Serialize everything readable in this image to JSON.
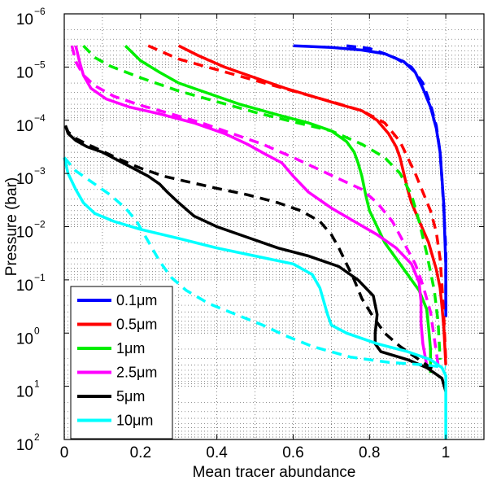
{
  "chart_data": {
    "type": "line",
    "title": "",
    "xlabel": "Mean tracer abundance",
    "ylabel": "Pressure (bar)",
    "xlim": [
      0,
      1.1
    ],
    "ylim_exponent": [
      -6,
      2
    ],
    "y_scale": "log",
    "y_inverted": true,
    "grid": true,
    "legend_position": "bottom-left",
    "x_ticks": [
      {
        "value": 0,
        "label": "0"
      },
      {
        "value": 0.2,
        "label": "0.2"
      },
      {
        "value": 0.4,
        "label": "0.4"
      },
      {
        "value": 0.6,
        "label": "0.6"
      },
      {
        "value": 0.8,
        "label": "0.8"
      },
      {
        "value": 1.0,
        "label": "1"
      }
    ],
    "y_ticks": [
      {
        "exp": -6,
        "base": "10",
        "sup": "−6"
      },
      {
        "exp": -5,
        "base": "10",
        "sup": "−5"
      },
      {
        "exp": -4,
        "base": "10",
        "sup": "−4"
      },
      {
        "exp": -3,
        "base": "10",
        "sup": "−3"
      },
      {
        "exp": -2,
        "base": "10",
        "sup": "−2"
      },
      {
        "exp": -1,
        "base": "10",
        "sup": "−1"
      },
      {
        "exp": 0,
        "base": "10",
        "sup": "0"
      },
      {
        "exp": 1,
        "base": "10",
        "sup": "1"
      },
      {
        "exp": 2,
        "base": "10",
        "sup": "2"
      }
    ],
    "series": [
      {
        "name": "0.1μm",
        "color": "#0000ff",
        "style": "solid",
        "points": [
          [
            0.6,
            -5.4
          ],
          [
            0.7,
            -5.37
          ],
          [
            0.78,
            -5.32
          ],
          [
            0.84,
            -5.25
          ],
          [
            0.89,
            -5.1
          ],
          [
            0.92,
            -4.9
          ],
          [
            0.94,
            -4.6
          ],
          [
            0.96,
            -4.25
          ],
          [
            0.975,
            -3.85
          ],
          [
            0.985,
            -3.4
          ],
          [
            0.99,
            -2.9
          ],
          [
            0.995,
            -2.4
          ],
          [
            0.997,
            -1.9
          ],
          [
            1.0,
            -1.3
          ],
          [
            1.0,
            -0.8
          ],
          [
            1.0,
            -0.3
          ]
        ]
      },
      {
        "name": "0.1μm dashed",
        "color": "#0000ff",
        "style": "dashed",
        "points": [
          [
            0.74,
            -5.4
          ],
          [
            0.8,
            -5.35
          ],
          [
            0.86,
            -5.2
          ],
          [
            0.91,
            -5.0
          ],
          [
            0.94,
            -4.7
          ],
          [
            0.96,
            -4.3
          ],
          [
            0.975,
            -3.9
          ],
          [
            0.985,
            -3.4
          ],
          [
            0.99,
            -2.9
          ],
          [
            0.995,
            -2.3
          ],
          [
            1.0,
            -1.6
          ],
          [
            1.0,
            -0.9
          ],
          [
            1.0,
            -0.3
          ]
        ]
      },
      {
        "name": "0.5μm",
        "color": "#ff0000",
        "style": "solid",
        "points": [
          [
            0.3,
            -5.4
          ],
          [
            0.35,
            -5.22
          ],
          [
            0.42,
            -5.0
          ],
          [
            0.5,
            -4.8
          ],
          [
            0.58,
            -4.6
          ],
          [
            0.65,
            -4.45
          ],
          [
            0.72,
            -4.3
          ],
          [
            0.78,
            -4.18
          ],
          [
            0.82,
            -4.0
          ],
          [
            0.85,
            -3.75
          ],
          [
            0.87,
            -3.5
          ],
          [
            0.88,
            -3.3
          ],
          [
            0.89,
            -3.0
          ],
          [
            0.9,
            -2.7
          ],
          [
            0.91,
            -2.45
          ],
          [
            0.925,
            -2.2
          ],
          [
            0.94,
            -1.95
          ],
          [
            0.955,
            -1.7
          ],
          [
            0.965,
            -1.45
          ],
          [
            0.975,
            -1.2
          ],
          [
            0.985,
            -0.85
          ],
          [
            0.99,
            -0.5
          ],
          [
            0.995,
            -0.1
          ],
          [
            1.0,
            0.6
          ]
        ]
      },
      {
        "name": "0.5μm dashed",
        "color": "#ff0000",
        "style": "dashed",
        "points": [
          [
            0.22,
            -5.4
          ],
          [
            0.3,
            -5.15
          ],
          [
            0.4,
            -4.95
          ],
          [
            0.5,
            -4.75
          ],
          [
            0.6,
            -4.55
          ],
          [
            0.7,
            -4.35
          ],
          [
            0.78,
            -4.18
          ],
          [
            0.84,
            -3.95
          ],
          [
            0.88,
            -3.6
          ],
          [
            0.9,
            -3.3
          ],
          [
            0.92,
            -3.0
          ],
          [
            0.94,
            -2.65
          ],
          [
            0.96,
            -2.3
          ],
          [
            0.975,
            -1.9
          ],
          [
            0.985,
            -1.4
          ],
          [
            0.99,
            -0.9
          ],
          [
            0.995,
            -0.3
          ],
          [
            1.0,
            0.5
          ]
        ]
      },
      {
        "name": "1μm",
        "color": "#00ee00",
        "style": "solid",
        "points": [
          [
            0.16,
            -5.4
          ],
          [
            0.2,
            -5.12
          ],
          [
            0.25,
            -4.9
          ],
          [
            0.3,
            -4.7
          ],
          [
            0.38,
            -4.5
          ],
          [
            0.46,
            -4.3
          ],
          [
            0.56,
            -4.1
          ],
          [
            0.64,
            -3.95
          ],
          [
            0.7,
            -3.8
          ],
          [
            0.74,
            -3.6
          ],
          [
            0.76,
            -3.4
          ],
          [
            0.77,
            -3.2
          ],
          [
            0.78,
            -2.95
          ],
          [
            0.79,
            -2.6
          ],
          [
            0.8,
            -2.3
          ],
          [
            0.82,
            -2.0
          ],
          [
            0.84,
            -1.7
          ],
          [
            0.87,
            -1.4
          ],
          [
            0.9,
            -1.1
          ],
          [
            0.93,
            -0.8
          ],
          [
            0.95,
            -0.45
          ],
          [
            0.955,
            -0.1
          ],
          [
            0.96,
            0.3
          ],
          [
            0.96,
            0.75
          ]
        ]
      },
      {
        "name": "1μm dashed",
        "color": "#00ee00",
        "style": "dashed",
        "points": [
          [
            0.05,
            -5.4
          ],
          [
            0.08,
            -5.18
          ],
          [
            0.12,
            -5.02
          ],
          [
            0.2,
            -4.8
          ],
          [
            0.3,
            -4.55
          ],
          [
            0.4,
            -4.35
          ],
          [
            0.5,
            -4.15
          ],
          [
            0.6,
            -3.97
          ],
          [
            0.7,
            -3.8
          ],
          [
            0.78,
            -3.55
          ],
          [
            0.84,
            -3.3
          ],
          [
            0.88,
            -3.0
          ],
          [
            0.91,
            -2.6
          ],
          [
            0.93,
            -2.1
          ],
          [
            0.95,
            -1.5
          ],
          [
            0.97,
            -0.8
          ],
          [
            0.98,
            -0.2
          ],
          [
            0.985,
            0.5
          ]
        ]
      },
      {
        "name": "2.5μm",
        "color": "#ff00ff",
        "style": "solid",
        "points": [
          [
            0.03,
            -5.4
          ],
          [
            0.04,
            -5.1
          ],
          [
            0.05,
            -4.85
          ],
          [
            0.07,
            -4.6
          ],
          [
            0.11,
            -4.4
          ],
          [
            0.17,
            -4.25
          ],
          [
            0.25,
            -4.12
          ],
          [
            0.34,
            -3.95
          ],
          [
            0.42,
            -3.75
          ],
          [
            0.48,
            -3.55
          ],
          [
            0.53,
            -3.35
          ],
          [
            0.57,
            -3.2
          ],
          [
            0.6,
            -2.95
          ],
          [
            0.64,
            -2.65
          ],
          [
            0.7,
            -2.35
          ],
          [
            0.76,
            -2.1
          ],
          [
            0.82,
            -1.85
          ],
          [
            0.87,
            -1.6
          ],
          [
            0.91,
            -1.3
          ],
          [
            0.93,
            -0.95
          ],
          [
            0.935,
            -0.6
          ],
          [
            0.935,
            -0.2
          ],
          [
            0.94,
            0.2
          ],
          [
            0.95,
            0.6
          ]
        ]
      },
      {
        "name": "2.5μm dashed",
        "color": "#ff00ff",
        "style": "dashed",
        "points": [
          [
            0.02,
            -5.4
          ],
          [
            0.03,
            -5.1
          ],
          [
            0.05,
            -4.85
          ],
          [
            0.08,
            -4.65
          ],
          [
            0.13,
            -4.45
          ],
          [
            0.2,
            -4.28
          ],
          [
            0.28,
            -4.12
          ],
          [
            0.36,
            -3.95
          ],
          [
            0.44,
            -3.75
          ],
          [
            0.52,
            -3.55
          ],
          [
            0.6,
            -3.3
          ],
          [
            0.66,
            -3.1
          ],
          [
            0.72,
            -2.9
          ],
          [
            0.78,
            -2.7
          ],
          [
            0.82,
            -2.45
          ],
          [
            0.86,
            -2.1
          ],
          [
            0.89,
            -1.7
          ],
          [
            0.92,
            -1.3
          ],
          [
            0.94,
            -0.9
          ],
          [
            0.96,
            -0.4
          ],
          [
            0.97,
            0.1
          ],
          [
            0.98,
            0.6
          ]
        ]
      },
      {
        "name": "5μm",
        "color": "#000000",
        "style": "solid",
        "points": [
          [
            0.003,
            -3.9
          ],
          [
            0.01,
            -3.75
          ],
          [
            0.03,
            -3.62
          ],
          [
            0.06,
            -3.5
          ],
          [
            0.1,
            -3.4
          ],
          [
            0.14,
            -3.25
          ],
          [
            0.18,
            -3.1
          ],
          [
            0.22,
            -2.95
          ],
          [
            0.25,
            -2.8
          ],
          [
            0.27,
            -2.65
          ],
          [
            0.3,
            -2.45
          ],
          [
            0.34,
            -2.2
          ],
          [
            0.4,
            -2.0
          ],
          [
            0.48,
            -1.8
          ],
          [
            0.56,
            -1.6
          ],
          [
            0.64,
            -1.45
          ],
          [
            0.72,
            -1.25
          ],
          [
            0.77,
            -1.0
          ],
          [
            0.81,
            -0.7
          ],
          [
            0.82,
            -0.35
          ],
          [
            0.815,
            0.0
          ],
          [
            0.815,
            0.2
          ],
          [
            0.83,
            0.35
          ],
          [
            0.9,
            0.5
          ],
          [
            0.95,
            0.65
          ],
          [
            0.99,
            0.85
          ],
          [
            1.0,
            1.1
          ]
        ]
      },
      {
        "name": "5μm dashed",
        "color": "#000000",
        "style": "dashed",
        "points": [
          [
            0.003,
            -3.9
          ],
          [
            0.01,
            -3.78
          ],
          [
            0.03,
            -3.66
          ],
          [
            0.06,
            -3.55
          ],
          [
            0.1,
            -3.42
          ],
          [
            0.15,
            -3.25
          ],
          [
            0.2,
            -3.1
          ],
          [
            0.26,
            -2.95
          ],
          [
            0.32,
            -2.85
          ],
          [
            0.4,
            -2.72
          ],
          [
            0.48,
            -2.6
          ],
          [
            0.56,
            -2.45
          ],
          [
            0.62,
            -2.3
          ],
          [
            0.67,
            -2.1
          ],
          [
            0.7,
            -1.85
          ],
          [
            0.72,
            -1.6
          ],
          [
            0.74,
            -1.3
          ],
          [
            0.76,
            -1.0
          ],
          [
            0.78,
            -0.65
          ],
          [
            0.81,
            -0.3
          ],
          [
            0.84,
            0.0
          ],
          [
            0.88,
            0.25
          ],
          [
            0.92,
            0.45
          ],
          [
            0.97,
            0.7
          ]
        ]
      },
      {
        "name": "10μm",
        "color": "#00ffff",
        "style": "solid",
        "points": [
          [
            0.0,
            -3.3
          ],
          [
            0.01,
            -3.0
          ],
          [
            0.03,
            -2.7
          ],
          [
            0.05,
            -2.45
          ],
          [
            0.08,
            -2.25
          ],
          [
            0.13,
            -2.1
          ],
          [
            0.2,
            -1.95
          ],
          [
            0.3,
            -1.78
          ],
          [
            0.4,
            -1.6
          ],
          [
            0.5,
            -1.45
          ],
          [
            0.6,
            -1.3
          ],
          [
            0.65,
            -1.1
          ],
          [
            0.67,
            -0.85
          ],
          [
            0.68,
            -0.6
          ],
          [
            0.69,
            -0.35
          ],
          [
            0.7,
            -0.15
          ],
          [
            0.74,
            0.0
          ],
          [
            0.82,
            0.2
          ],
          [
            0.9,
            0.35
          ],
          [
            0.96,
            0.5
          ],
          [
            0.99,
            0.65
          ],
          [
            1.0,
            0.8
          ],
          [
            1.0,
            1.5
          ],
          [
            1.0,
            2.0
          ]
        ]
      },
      {
        "name": "10μm dashed",
        "color": "#00ffff",
        "style": "dashed",
        "points": [
          [
            0.0,
            -3.3
          ],
          [
            0.03,
            -3.05
          ],
          [
            0.07,
            -2.85
          ],
          [
            0.12,
            -2.6
          ],
          [
            0.16,
            -2.35
          ],
          [
            0.19,
            -2.1
          ],
          [
            0.21,
            -1.85
          ],
          [
            0.23,
            -1.6
          ],
          [
            0.25,
            -1.35
          ],
          [
            0.28,
            -1.05
          ],
          [
            0.32,
            -0.8
          ],
          [
            0.38,
            -0.55
          ],
          [
            0.45,
            -0.35
          ],
          [
            0.52,
            -0.15
          ],
          [
            0.58,
            0.05
          ],
          [
            0.65,
            0.25
          ],
          [
            0.75,
            0.45
          ],
          [
            0.85,
            0.55
          ],
          [
            0.95,
            0.6
          ],
          [
            1.0,
            0.65
          ]
        ]
      }
    ],
    "legend": [
      {
        "label": "0.1μm",
        "color": "#0000ff"
      },
      {
        "label": "0.5μm",
        "color": "#ff0000"
      },
      {
        "label": "1μm",
        "color": "#00ee00"
      },
      {
        "label": "2.5μm",
        "color": "#ff00ff"
      },
      {
        "label": "5μm",
        "color": "#000000"
      },
      {
        "label": "10μm",
        "color": "#00ffff"
      }
    ]
  }
}
